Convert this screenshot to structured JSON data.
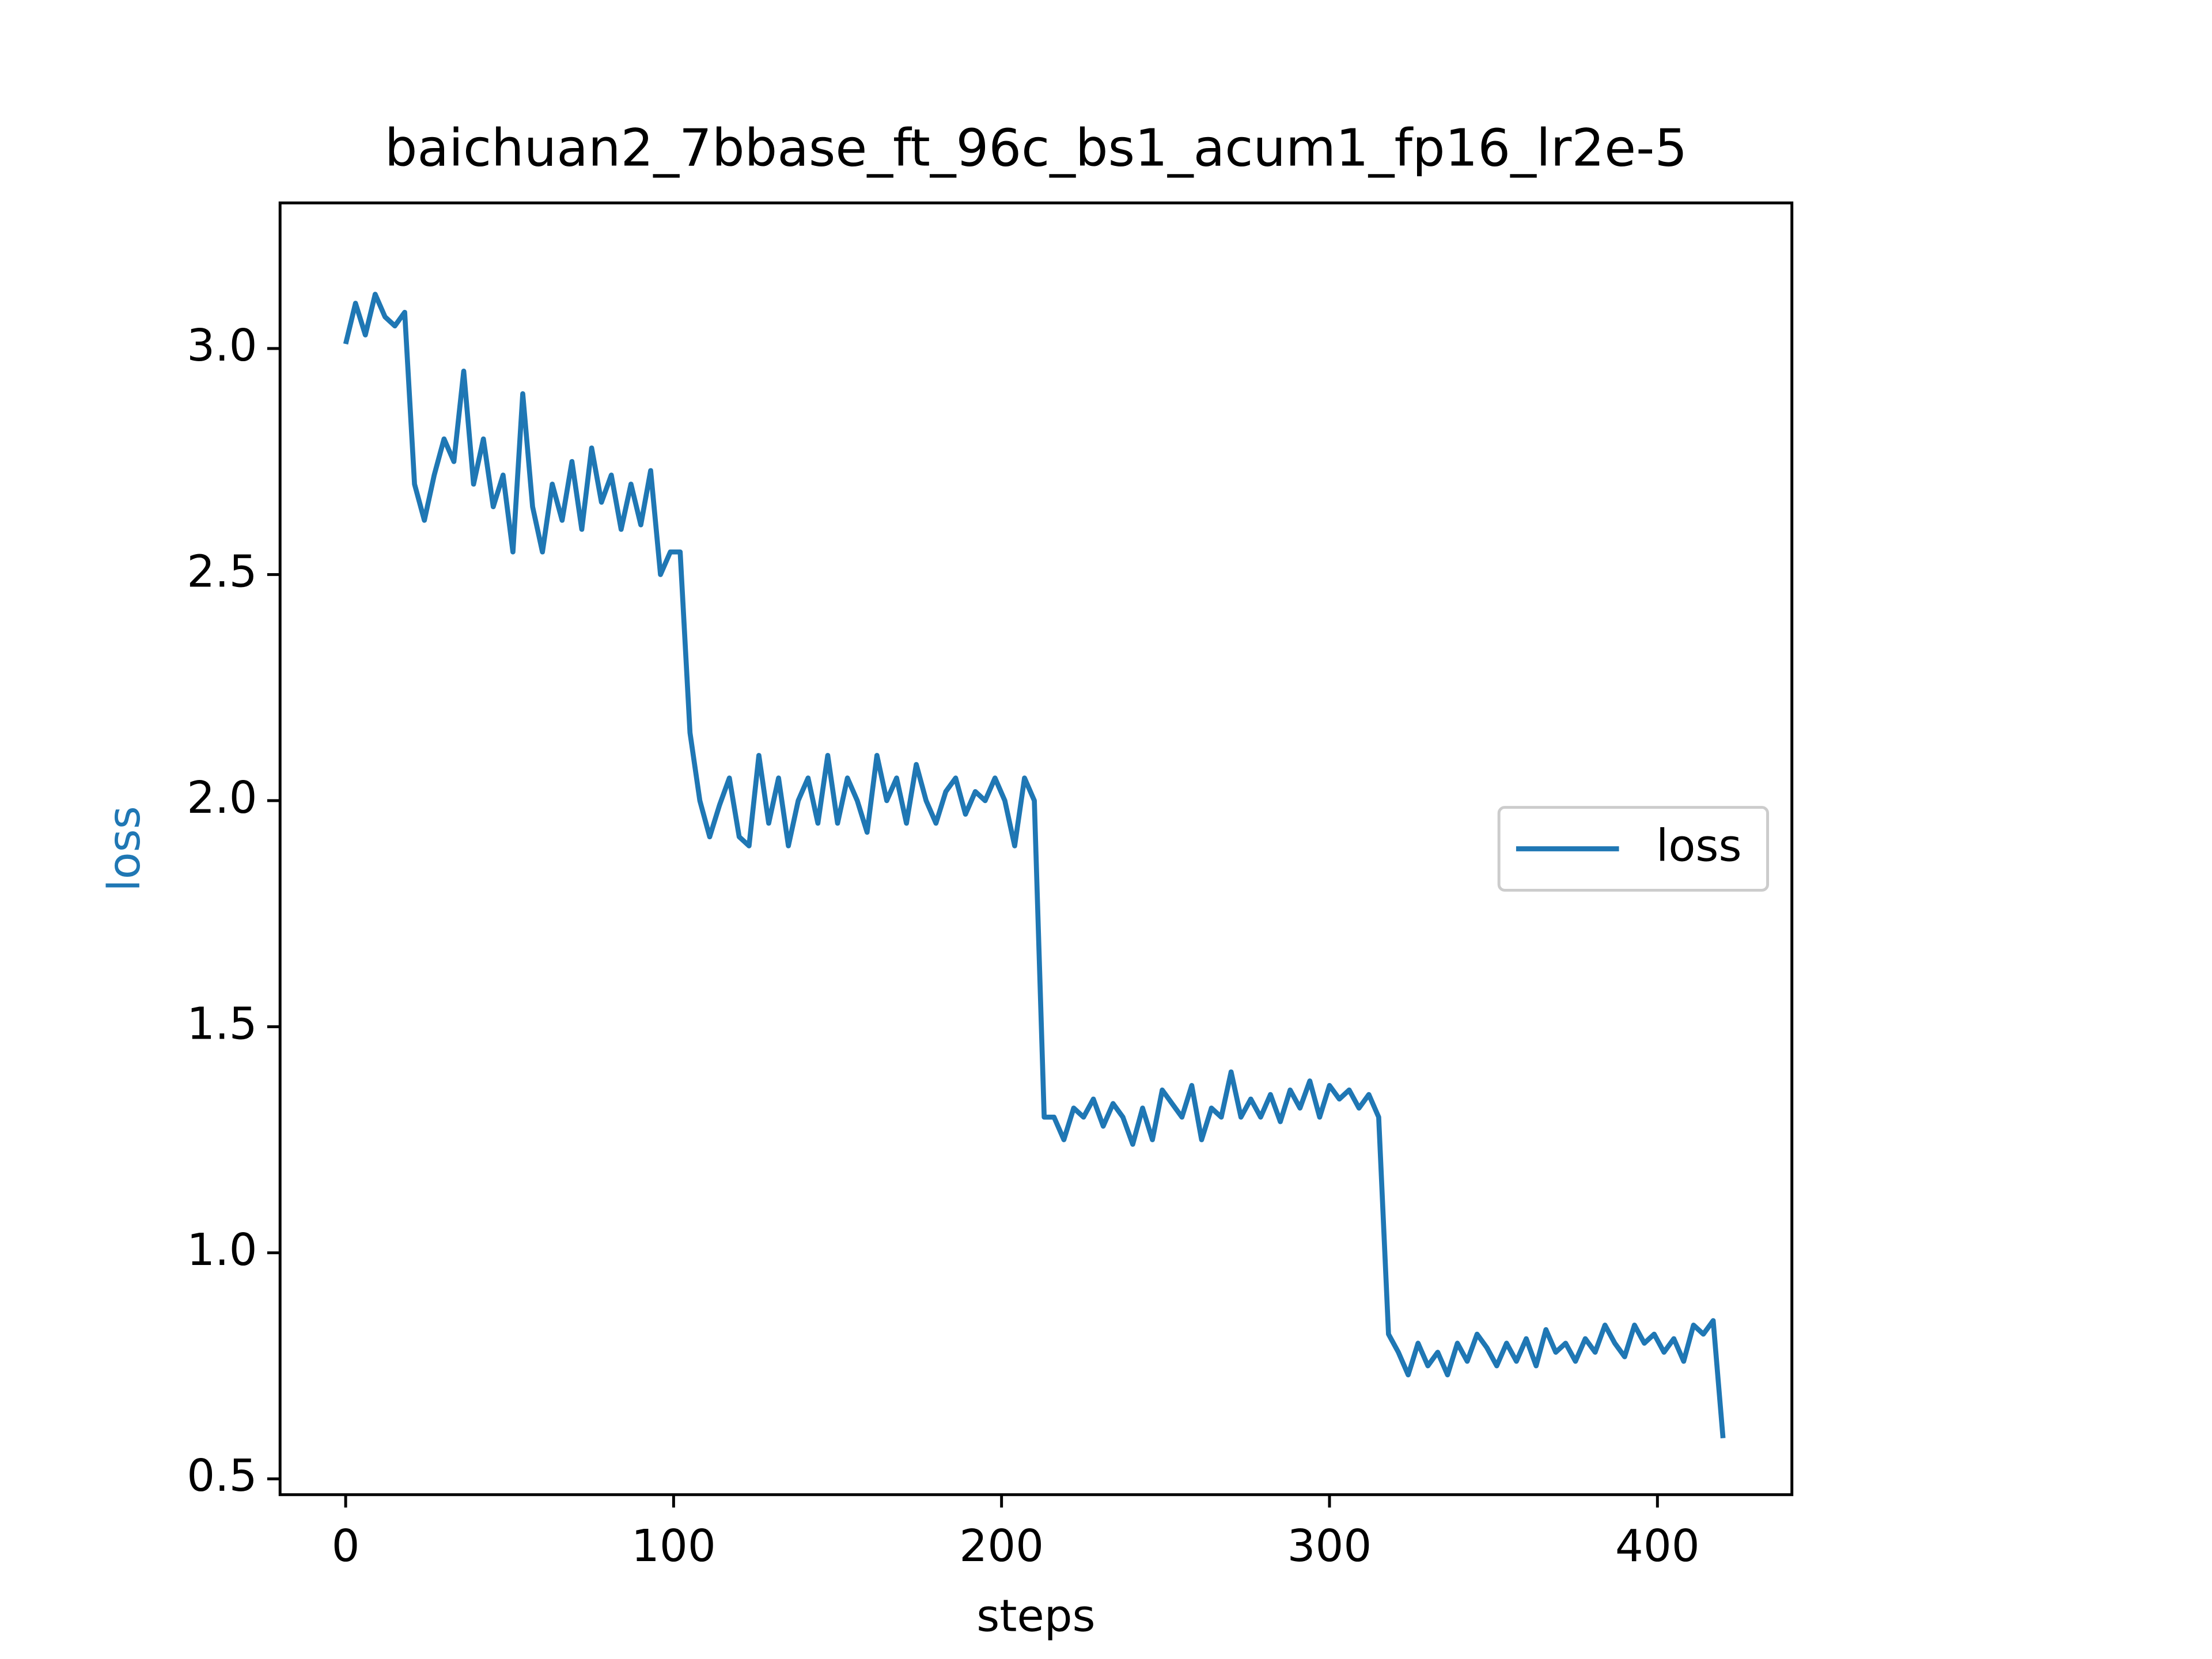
{
  "chart_data": {
    "type": "line",
    "title": "baichuan2_7bbase_ft_96c_bs1_acum1_fp16_lr2e-5",
    "xlabel": "steps",
    "ylabel": "loss",
    "legend": "center right",
    "x": [
      0,
      3,
      6,
      9,
      12,
      15,
      18,
      21,
      24,
      27,
      30,
      33,
      36,
      39,
      42,
      45,
      48,
      51,
      54,
      57,
      60,
      63,
      66,
      69,
      72,
      75,
      78,
      81,
      84,
      87,
      90,
      93,
      96,
      99,
      102,
      105,
      108,
      111,
      114,
      117,
      120,
      123,
      126,
      129,
      132,
      135,
      138,
      141,
      144,
      147,
      150,
      153,
      156,
      159,
      162,
      165,
      168,
      171,
      174,
      177,
      180,
      183,
      186,
      189,
      192,
      195,
      198,
      201,
      204,
      207,
      210,
      213,
      216,
      219,
      222,
      225,
      228,
      231,
      234,
      237,
      240,
      243,
      246,
      249,
      252,
      255,
      258,
      261,
      264,
      267,
      270,
      273,
      276,
      279,
      282,
      285,
      288,
      291,
      294,
      297,
      300,
      303,
      306,
      309,
      312,
      315,
      318,
      321,
      324,
      327,
      330,
      333,
      336,
      339,
      342,
      345,
      348,
      351,
      354,
      357,
      360,
      363,
      366,
      369,
      372,
      375,
      378,
      381,
      384,
      387,
      390,
      393,
      396,
      399,
      402,
      405,
      408,
      411,
      414,
      417,
      420
    ],
    "series": [
      {
        "name": "loss",
        "color": "#1f77b4",
        "values": [
          3.01,
          3.1,
          3.03,
          3.12,
          3.07,
          3.05,
          3.08,
          2.7,
          2.62,
          2.72,
          2.8,
          2.75,
          2.95,
          2.7,
          2.8,
          2.65,
          2.72,
          2.55,
          2.9,
          2.65,
          2.55,
          2.7,
          2.62,
          2.75,
          2.6,
          2.78,
          2.66,
          2.72,
          2.6,
          2.7,
          2.61,
          2.73,
          2.5,
          2.55,
          2.55,
          2.15,
          2.0,
          1.92,
          1.99,
          2.05,
          1.92,
          1.9,
          2.1,
          1.95,
          2.05,
          1.9,
          2.0,
          2.05,
          1.95,
          2.1,
          1.95,
          2.05,
          2.0,
          1.93,
          2.1,
          2.0,
          2.05,
          1.95,
          2.08,
          2.0,
          1.95,
          2.02,
          2.05,
          1.97,
          2.02,
          2.0,
          2.05,
          2.0,
          1.9,
          2.05,
          2.0,
          1.3,
          1.3,
          1.25,
          1.32,
          1.3,
          1.34,
          1.28,
          1.33,
          1.3,
          1.24,
          1.32,
          1.25,
          1.36,
          1.33,
          1.3,
          1.37,
          1.25,
          1.32,
          1.3,
          1.4,
          1.3,
          1.34,
          1.3,
          1.35,
          1.29,
          1.36,
          1.32,
          1.38,
          1.3,
          1.37,
          1.34,
          1.36,
          1.32,
          1.35,
          1.3,
          0.82,
          0.78,
          0.73,
          0.8,
          0.75,
          0.78,
          0.73,
          0.8,
          0.76,
          0.82,
          0.79,
          0.75,
          0.8,
          0.76,
          0.81,
          0.75,
          0.83,
          0.78,
          0.8,
          0.76,
          0.81,
          0.78,
          0.84,
          0.8,
          0.77,
          0.84,
          0.8,
          0.82,
          0.78,
          0.81,
          0.76,
          0.84,
          0.82,
          0.85,
          0.59
        ]
      }
    ],
    "xlim": [
      -20,
      441
    ],
    "xticks": [
      0,
      100,
      200,
      300,
      400
    ],
    "ylim": [
      0.465,
      3.322
    ],
    "yticks": [
      0.5,
      {
        "value": 1,
        "label": "1.0"
      },
      1.5,
      {
        "value": 2,
        "label": "2.0"
      },
      2.5,
      {
        "value": 3,
        "label": "3.0"
      }
    ]
  }
}
